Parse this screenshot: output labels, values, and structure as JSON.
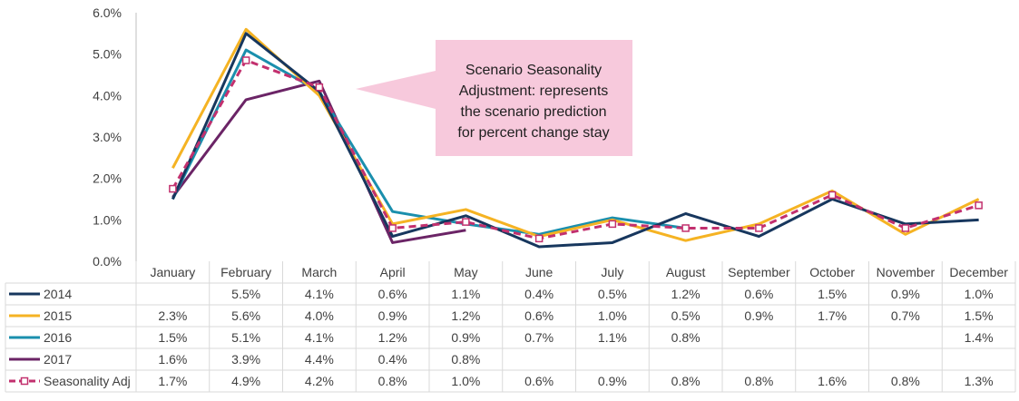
{
  "chart_data": {
    "type": "line",
    "categories": [
      "January",
      "February",
      "March",
      "April",
      "May",
      "June",
      "July",
      "August",
      "September",
      "October",
      "November",
      "December"
    ],
    "y_ticks": [
      "6.0%",
      "5.0%",
      "4.0%",
      "3.0%",
      "2.0%",
      "1.0%",
      "0.0%"
    ],
    "ylim": [
      0,
      6
    ],
    "unit": "%",
    "grid": false,
    "legend": "data-table-left",
    "series": [
      {
        "name": "2014",
        "color": "#17375e",
        "dash": false,
        "marker": false,
        "plot": [
          1.5,
          5.5,
          4.1,
          0.6,
          1.1,
          0.35,
          0.45,
          1.15,
          0.6,
          1.5,
          0.9,
          1.0
        ],
        "table": [
          "",
          "5.5%",
          "4.1%",
          "0.6%",
          "1.1%",
          "0.4%",
          "0.5%",
          "1.2%",
          "0.6%",
          "1.5%",
          "0.9%",
          "1.0%"
        ]
      },
      {
        "name": "2015",
        "color": "#f5b323",
        "dash": false,
        "marker": false,
        "plot": [
          2.25,
          5.6,
          4.0,
          0.9,
          1.25,
          0.6,
          1.0,
          0.5,
          0.9,
          1.7,
          0.65,
          1.5
        ],
        "table": [
          "2.3%",
          "5.6%",
          "4.0%",
          "0.9%",
          "1.2%",
          "0.6%",
          "1.0%",
          "0.5%",
          "0.9%",
          "1.7%",
          "0.7%",
          "1.5%"
        ]
      },
      {
        "name": "2016",
        "color": "#1a8fad",
        "dash": false,
        "marker": false,
        "plot": [
          1.5,
          5.1,
          4.1,
          1.2,
          0.9,
          0.65,
          1.05,
          0.8,
          null,
          null,
          null,
          1.4
        ],
        "table": [
          "1.5%",
          "5.1%",
          "4.1%",
          "1.2%",
          "0.9%",
          "0.7%",
          "1.1%",
          "0.8%",
          "",
          "",
          "",
          "1.4%"
        ]
      },
      {
        "name": "2017",
        "color": "#6b2466",
        "dash": false,
        "marker": false,
        "plot": [
          1.55,
          3.9,
          4.35,
          0.45,
          0.75,
          null,
          null,
          null,
          null,
          null,
          null,
          null
        ],
        "table": [
          "1.6%",
          "3.9%",
          "4.4%",
          "0.4%",
          "0.8%",
          "",
          "",
          "",
          "",
          "",
          "",
          ""
        ]
      },
      {
        "name": "Seasonality Adj",
        "color": "#c2306e",
        "dash": true,
        "marker": true,
        "plot": [
          1.75,
          4.85,
          4.2,
          0.8,
          0.95,
          0.55,
          0.9,
          0.8,
          0.8,
          1.6,
          0.8,
          1.35
        ],
        "table": [
          "1.7%",
          "4.9%",
          "4.2%",
          "0.8%",
          "1.0%",
          "0.6%",
          "0.9%",
          "0.8%",
          "0.8%",
          "1.6%",
          "0.8%",
          "1.3%"
        ]
      }
    ],
    "annotation": {
      "lines": [
        "Scenario Seasonality",
        "Adjustment: represents",
        "the scenario prediction",
        "for percent change stay"
      ],
      "fill": "#f7c9dc"
    }
  }
}
